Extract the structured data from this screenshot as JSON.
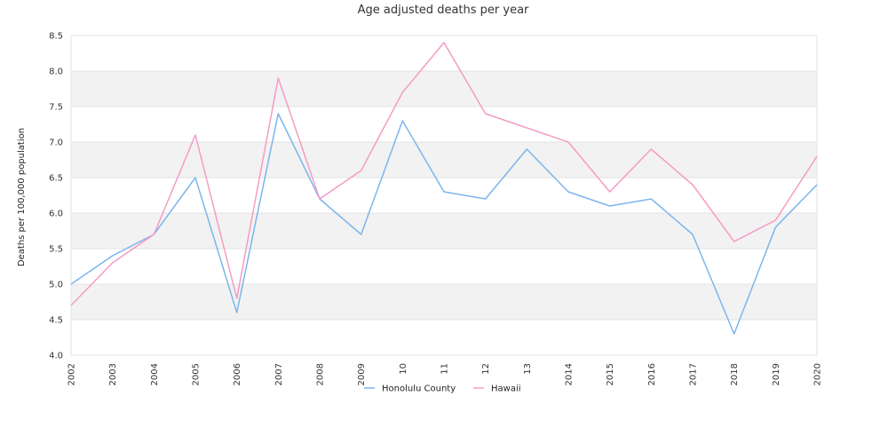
{
  "chart_data": {
    "type": "line",
    "title": "Age adjusted deaths per year",
    "xlabel": "",
    "ylabel": "Deaths per 100,000 population",
    "categories": [
      "2002",
      "2003",
      "2004",
      "2005",
      "2006",
      "2007",
      "2008",
      "2009",
      "2010",
      "2011",
      "2012",
      "2013",
      "2014",
      "2015",
      "2016",
      "2017",
      "2018",
      "2019",
      "2020"
    ],
    "tick_labels": [
      "2002",
      "2003",
      "2004",
      "2005",
      "2006",
      "2007",
      "2008",
      "2009",
      "10",
      "11",
      "12",
      "13",
      "2014",
      "2015",
      "2016",
      "2017",
      "2018",
      "2019",
      "2020"
    ],
    "ylim": [
      4.0,
      8.5
    ],
    "yticks": [
      "4.0",
      "4.5",
      "5.0",
      "5.5",
      "6.0",
      "6.5",
      "7.0",
      "7.5",
      "8.0",
      "8.5"
    ],
    "grid": true,
    "legend_position": "bottom-center",
    "series": [
      {
        "name": "Honolulu County",
        "color": "#7cb5ec",
        "values": [
          5.0,
          5.4,
          5.7,
          6.5,
          4.6,
          7.4,
          6.2,
          5.7,
          7.3,
          6.3,
          6.2,
          6.9,
          6.3,
          6.1,
          6.2,
          5.7,
          4.3,
          5.8,
          6.4
        ]
      },
      {
        "name": "Hawaii",
        "color": "#f59bc6",
        "values": [
          4.7,
          5.3,
          5.7,
          7.1,
          4.8,
          7.9,
          6.2,
          6.6,
          7.7,
          8.4,
          7.4,
          7.2,
          7.0,
          6.3,
          6.9,
          6.4,
          5.6,
          5.9,
          6.8
        ]
      }
    ]
  }
}
